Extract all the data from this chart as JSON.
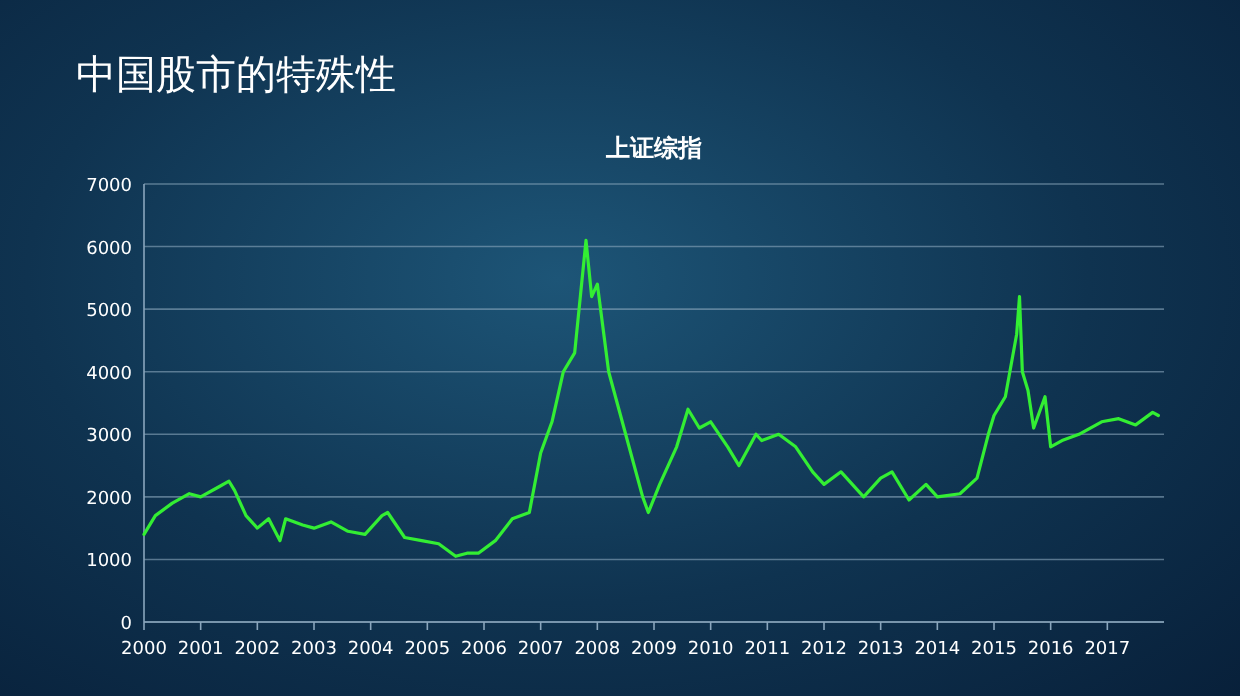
{
  "chart_data": {
    "type": "line",
    "title": "中国股市的特殊性",
    "subtitle": "上证综指",
    "x": [
      2000.0,
      2000.2,
      2000.5,
      2000.8,
      2001.0,
      2001.3,
      2001.5,
      2001.6,
      2001.8,
      2002.0,
      2002.2,
      2002.4,
      2002.5,
      2002.8,
      2003.0,
      2003.3,
      2003.6,
      2003.9,
      2004.2,
      2004.3,
      2004.6,
      2004.9,
      2005.2,
      2005.5,
      2005.7,
      2005.9,
      2006.2,
      2006.5,
      2006.8,
      2007.0,
      2007.2,
      2007.4,
      2007.6,
      2007.8,
      2007.9,
      2008.0,
      2008.2,
      2008.5,
      2008.8,
      2008.9,
      2009.1,
      2009.4,
      2009.6,
      2009.8,
      2010.0,
      2010.3,
      2010.5,
      2010.8,
      2010.9,
      2011.2,
      2011.5,
      2011.8,
      2012.0,
      2012.3,
      2012.7,
      2013.0,
      2013.2,
      2013.5,
      2013.8,
      2014.0,
      2014.4,
      2014.7,
      2014.9,
      2015.0,
      2015.2,
      2015.4,
      2015.45,
      2015.5,
      2015.6,
      2015.7,
      2015.9,
      2016.0,
      2016.2,
      2016.5,
      2016.9,
      2017.2,
      2017.5,
      2017.8,
      2017.9
    ],
    "series": [
      {
        "color": "#33ee33",
        "values": [
          1400,
          1700,
          1900,
          2050,
          2000,
          2150,
          2250,
          2100,
          1700,
          1500,
          1650,
          1300,
          1650,
          1550,
          1500,
          1600,
          1450,
          1400,
          1700,
          1750,
          1350,
          1300,
          1250,
          1050,
          1100,
          1100,
          1300,
          1650,
          1750,
          2700,
          3200,
          4000,
          4300,
          6100,
          5200,
          5400,
          4000,
          3000,
          2000,
          1750,
          2200,
          2800,
          3400,
          3100,
          3200,
          2800,
          2500,
          3000,
          2900,
          3000,
          2800,
          2400,
          2200,
          2400,
          2000,
          2300,
          2400,
          1950,
          2200,
          2000,
          2050,
          2300,
          3000,
          3300,
          3600,
          4600,
          5200,
          4000,
          3700,
          3100,
          3600,
          2800,
          2900,
          3000,
          3200,
          3250,
          3150,
          3350,
          3300
        ]
      }
    ],
    "xlim": [
      2000,
      2018
    ],
    "xticks": [
      2000,
      2001,
      2002,
      2003,
      2004,
      2005,
      2006,
      2007,
      2008,
      2009,
      2010,
      2011,
      2012,
      2013,
      2014,
      2015,
      2016,
      2017
    ],
    "ylim": [
      0,
      7000
    ],
    "yticks": [
      0,
      1000,
      2000,
      3000,
      4000,
      5000,
      6000,
      7000
    ],
    "grid": "y",
    "marker": "none",
    "line_style": "solid"
  }
}
